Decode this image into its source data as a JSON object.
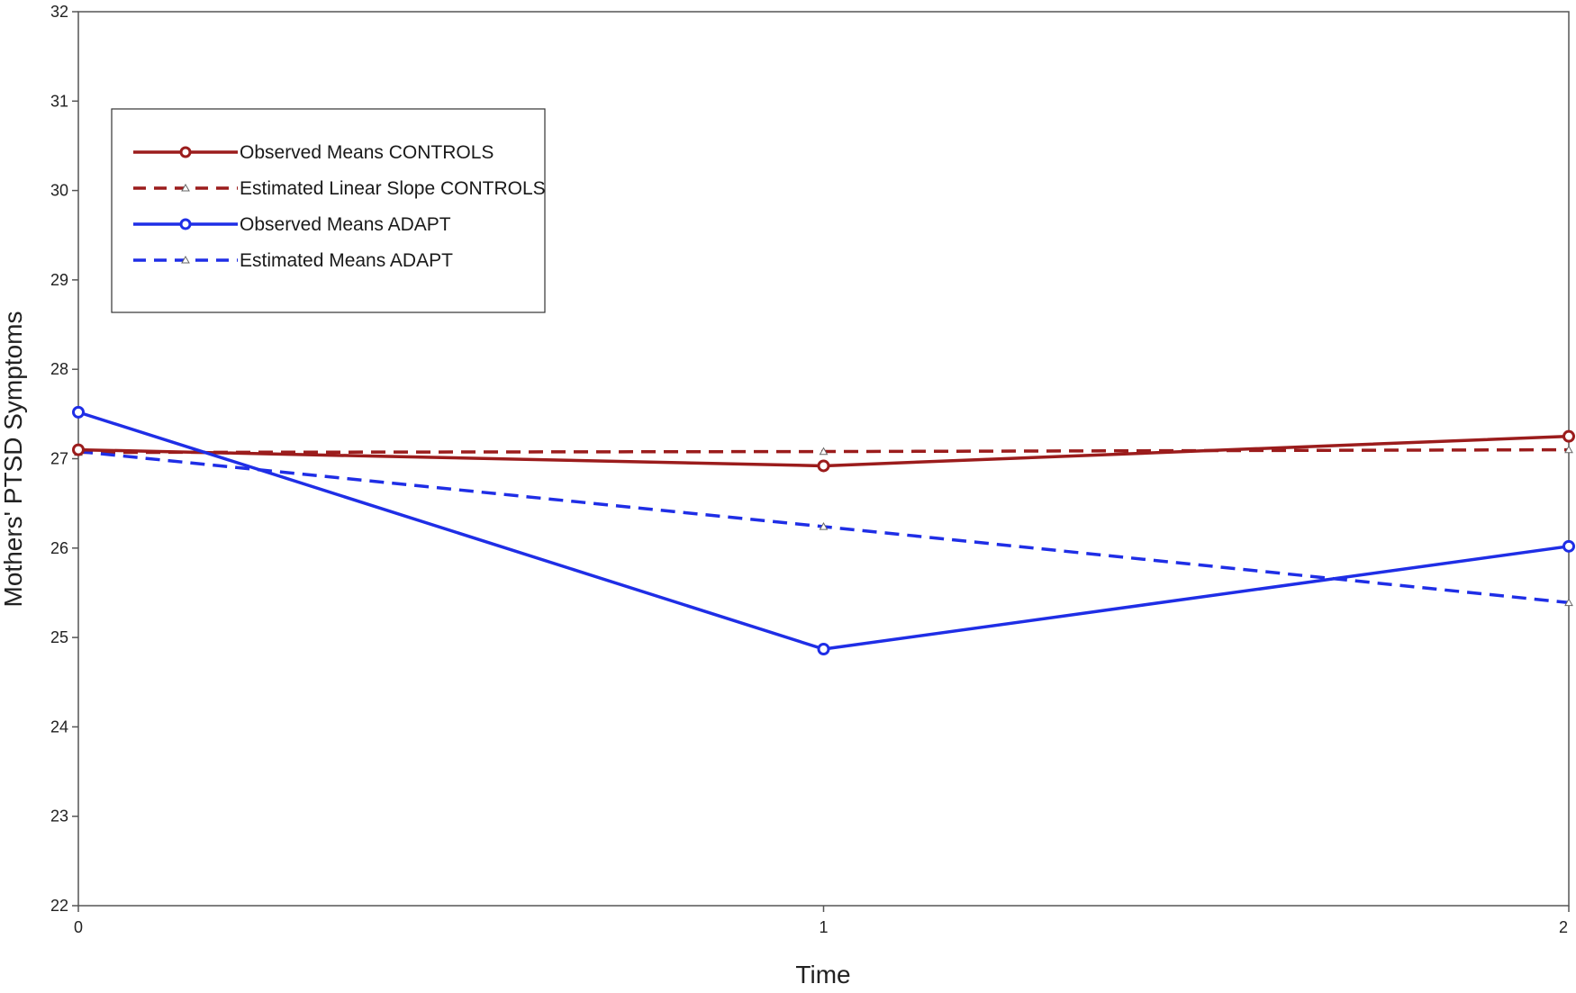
{
  "chart_data": {
    "type": "line",
    "title": "",
    "xlabel": "Time",
    "ylabel": "Mothers' PTSD Symptoms",
    "x": [
      0,
      1,
      2
    ],
    "x_ticks": [
      "0",
      "1",
      "2"
    ],
    "xlim": [
      0,
      2
    ],
    "ylim": [
      22,
      32
    ],
    "y_ticks": [
      "22",
      "23",
      "24",
      "25",
      "26",
      "27",
      "28",
      "29",
      "30",
      "31",
      "32"
    ],
    "grid": false,
    "legend_position": "top-left",
    "series": [
      {
        "name": "Observed Means CONTROLS",
        "values": [
          27.1,
          26.92,
          27.25
        ],
        "color": "#9b1c1c",
        "line_style": "solid",
        "marker": "circle"
      },
      {
        "name": "Estimated Linear Slope CONTROLS",
        "values": [
          27.07,
          27.08,
          27.1
        ],
        "color": "#9b1c1c",
        "line_style": "dashed",
        "marker": "triangle"
      },
      {
        "name": "Observed Means ADAPT",
        "values": [
          27.52,
          24.87,
          26.02
        ],
        "color": "#1f2ee6",
        "line_style": "solid",
        "marker": "circle"
      },
      {
        "name": "Estimated Means ADAPT",
        "values": [
          27.08,
          26.24,
          25.39
        ],
        "color": "#1f2ee6",
        "line_style": "dashed",
        "marker": "triangle"
      }
    ]
  }
}
